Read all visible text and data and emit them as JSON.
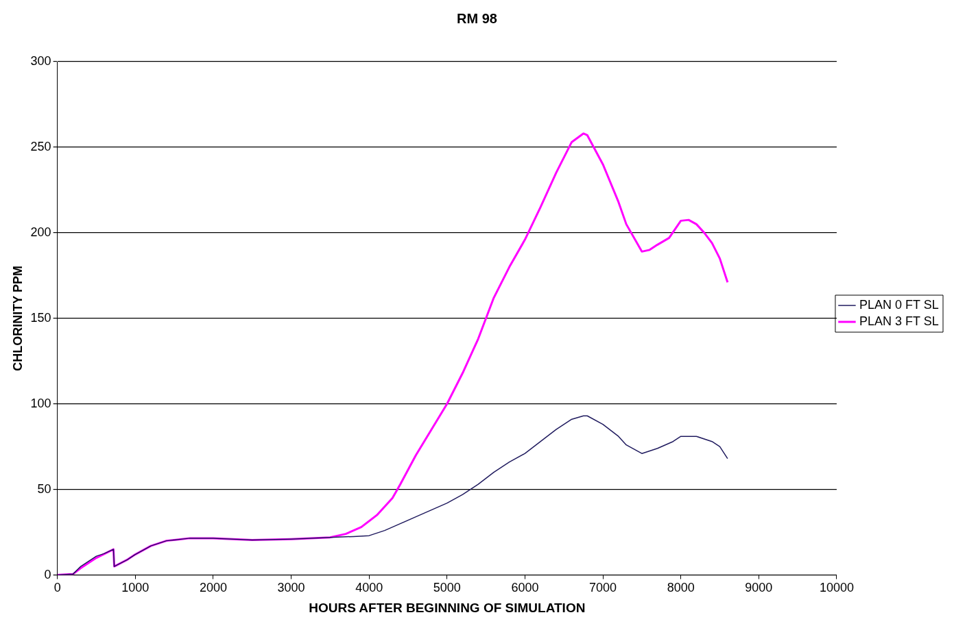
{
  "chart_data": {
    "type": "line",
    "title": "RM 98",
    "xlabel": "HOURS AFTER BEGINNING OF SIMULATION",
    "ylabel": "CHLORINITY PPM",
    "xlim": [
      0,
      10000
    ],
    "xticks": [
      0,
      1000,
      2000,
      3000,
      4000,
      5000,
      6000,
      7000,
      8000,
      9000,
      10000
    ],
    "ylim": [
      0,
      300
    ],
    "yticks": [
      0,
      50,
      100,
      150,
      200,
      250,
      300
    ],
    "grid": "y",
    "legend": "right",
    "marker": "none",
    "line_style": "solid",
    "series": [
      {
        "name": "PLAN 0 FT SL",
        "color": "#1f1a5e",
        "x": [
          0,
          200,
          300,
          400,
          500,
          600,
          720,
          730,
          900,
          1000,
          1200,
          1400,
          1700,
          2000,
          2500,
          3000,
          3500,
          3800,
          4000,
          4200,
          4400,
          4600,
          4800,
          5000,
          5200,
          5400,
          5600,
          5800,
          6000,
          6200,
          6400,
          6600,
          6750,
          6800,
          7000,
          7200,
          7300,
          7500,
          7700,
          7900,
          8000,
          8200,
          8400,
          8500,
          8600
        ],
        "values": [
          0,
          0.5,
          5,
          8,
          11,
          12.5,
          15,
          5,
          9,
          12,
          17,
          20,
          21.5,
          21.5,
          20.5,
          21,
          22,
          22.5,
          23,
          26,
          30,
          34,
          38,
          42,
          47,
          53,
          60,
          66,
          71,
          78,
          85,
          91,
          93,
          93,
          88,
          81,
          76,
          71,
          74,
          78,
          81,
          81,
          78,
          75,
          68
        ]
      },
      {
        "name": "PLAN 3 FT SL",
        "color": "#ff00ff",
        "x": [
          0,
          200,
          300,
          500,
          720,
          730,
          900,
          1000,
          1200,
          1400,
          1700,
          2000,
          2500,
          3000,
          3500,
          3700,
          3900,
          4100,
          4300,
          4400,
          4600,
          4800,
          5000,
          5200,
          5400,
          5600,
          5800,
          6000,
          6200,
          6400,
          6600,
          6750,
          6800,
          7000,
          7200,
          7300,
          7500,
          7600,
          7700,
          7850,
          8000,
          8100,
          8200,
          8300,
          8400,
          8500,
          8600
        ],
        "values": [
          0,
          0.5,
          4,
          10,
          15,
          5,
          9,
          12,
          17,
          20,
          21.5,
          21.5,
          20.5,
          21,
          22,
          24,
          28,
          35,
          45,
          53,
          70,
          85,
          100,
          118,
          138,
          162,
          180,
          196,
          215,
          235,
          253,
          258,
          257,
          240,
          218,
          205,
          189,
          190,
          193,
          197,
          207,
          207.5,
          205,
          200,
          194,
          185,
          171
        ]
      }
    ]
  }
}
